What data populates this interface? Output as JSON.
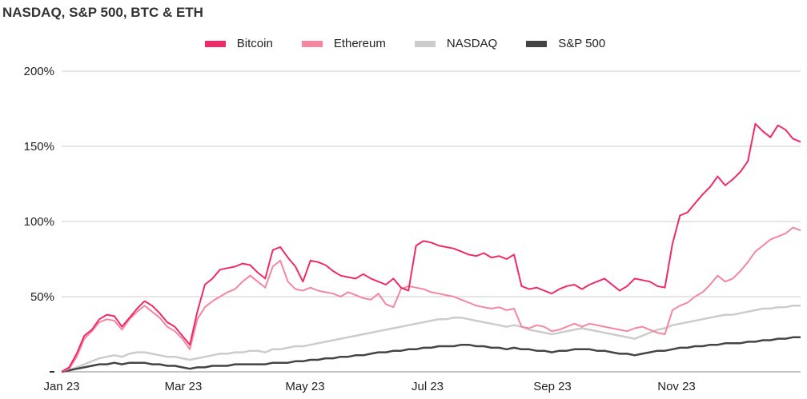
{
  "chart_data": {
    "type": "line",
    "title": "NASDAQ, S&P 500, BTC & ETH",
    "xlabel": "",
    "ylabel": "",
    "x_tick_labels": [
      "Jan 23",
      "Mar 23",
      "May 23",
      "Jul 23",
      "Sep 23",
      "Nov 23"
    ],
    "y_tick_labels": [
      "200%",
      "150%",
      "100%",
      "50%"
    ],
    "ylim": [
      0,
      200
    ],
    "y_ticks": [
      50,
      100,
      150,
      200
    ],
    "legend_position": "top-center",
    "grid": "horizontal",
    "series": [
      {
        "name": "Bitcoin",
        "color": "#ee2a67",
        "values": [
          0,
          3,
          12,
          24,
          28,
          35,
          38,
          37,
          30,
          36,
          42,
          47,
          44,
          39,
          33,
          30,
          24,
          18,
          40,
          58,
          62,
          68,
          69,
          70,
          72,
          71,
          66,
          62,
          81,
          83,
          76,
          70,
          60,
          74,
          73,
          71,
          67,
          64,
          63,
          62,
          65,
          62,
          60,
          58,
          62,
          56,
          54,
          84,
          87,
          86,
          84,
          83,
          82,
          80,
          78,
          77,
          79,
          76,
          77,
          75,
          78,
          57,
          55,
          56,
          54,
          52,
          55,
          57,
          58,
          55,
          58,
          60,
          62,
          58,
          54,
          57,
          62,
          61,
          60,
          57,
          56,
          85,
          104,
          106,
          112,
          118,
          123,
          130,
          124,
          128,
          133,
          140,
          165,
          160,
          156,
          164,
          161,
          155,
          153
        ]
      },
      {
        "name": "Ethereum",
        "color": "#f4869f",
        "values": [
          0,
          2,
          10,
          22,
          27,
          33,
          35,
          34,
          28,
          35,
          40,
          44,
          40,
          36,
          30,
          27,
          22,
          15,
          35,
          43,
          47,
          50,
          53,
          55,
          60,
          64,
          60,
          56,
          70,
          74,
          60,
          55,
          54,
          56,
          54,
          53,
          52,
          50,
          53,
          51,
          49,
          48,
          52,
          45,
          43,
          55,
          57,
          56,
          55,
          53,
          52,
          51,
          50,
          48,
          46,
          44,
          43,
          42,
          43,
          41,
          42,
          30,
          29,
          31,
          30,
          27,
          28,
          30,
          32,
          30,
          32,
          31,
          30,
          29,
          28,
          27,
          29,
          30,
          28,
          26,
          25,
          41,
          44,
          46,
          50,
          53,
          58,
          64,
          60,
          62,
          67,
          73,
          80,
          84,
          88,
          90,
          92,
          96,
          94
        ]
      },
      {
        "name": "NASDAQ",
        "color": "#cccccc",
        "values": [
          0,
          1,
          3,
          5,
          7,
          9,
          10,
          11,
          10,
          12,
          13,
          13,
          12,
          11,
          10,
          10,
          9,
          8,
          9,
          10,
          11,
          12,
          12,
          13,
          13,
          14,
          14,
          13,
          15,
          15,
          16,
          17,
          17,
          18,
          19,
          20,
          21,
          22,
          23,
          24,
          25,
          26,
          27,
          28,
          29,
          30,
          31,
          32,
          33,
          34,
          35,
          35,
          36,
          36,
          35,
          34,
          33,
          32,
          31,
          30,
          31,
          30,
          28,
          27,
          26,
          25,
          26,
          27,
          28,
          29,
          28,
          27,
          26,
          25,
          24,
          23,
          22,
          24,
          26,
          28,
          29,
          31,
          32,
          33,
          34,
          35,
          36,
          37,
          38,
          38,
          39,
          40,
          41,
          42,
          42,
          43,
          43,
          44,
          44
        ]
      },
      {
        "name": "S&P 500",
        "color": "#444444",
        "values": [
          0,
          1,
          2,
          3,
          4,
          5,
          5,
          6,
          5,
          6,
          6,
          6,
          5,
          5,
          4,
          4,
          3,
          2,
          3,
          3,
          4,
          4,
          4,
          5,
          5,
          5,
          5,
          5,
          6,
          6,
          6,
          7,
          7,
          8,
          8,
          9,
          9,
          10,
          10,
          11,
          11,
          12,
          13,
          13,
          14,
          14,
          15,
          15,
          16,
          16,
          17,
          17,
          17,
          18,
          18,
          17,
          17,
          16,
          16,
          15,
          16,
          15,
          15,
          14,
          14,
          13,
          14,
          14,
          15,
          15,
          15,
          14,
          14,
          13,
          12,
          12,
          11,
          12,
          13,
          14,
          14,
          15,
          16,
          16,
          17,
          17,
          18,
          18,
          19,
          19,
          19,
          20,
          20,
          21,
          21,
          22,
          22,
          23,
          23
        ]
      }
    ]
  }
}
